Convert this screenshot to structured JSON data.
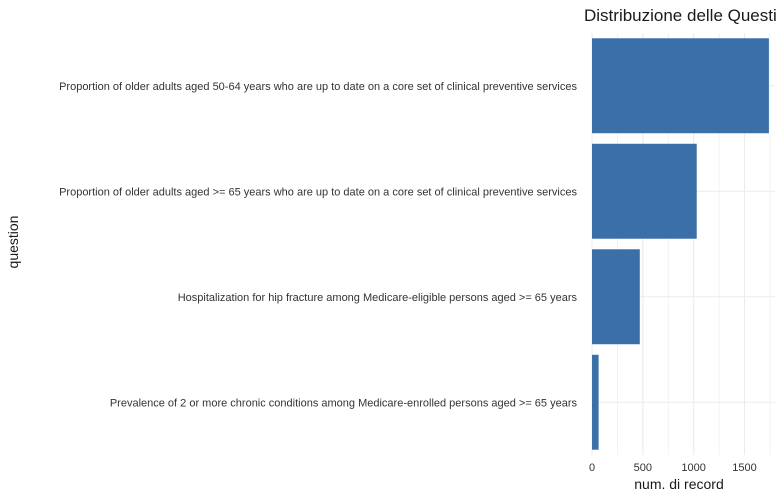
{
  "chart_data": {
    "type": "bar",
    "orientation": "horizontal",
    "title": "Distribuzione delle Questi",
    "xlabel": "num. di record",
    "ylabel": "question",
    "categories": [
      "Proportion of older adults aged 50-64 years who are up to date on a core set of clinical preventive services",
      "Proportion of older adults aged >= 65 years who are up to date on a core set of clinical preventive services",
      "Hospitalization for hip fracture among Medicare-eligible persons aged >= 65 years",
      "Prevalence of 2 or more chronic conditions among Medicare-enrolled persons aged >= 65 years"
    ],
    "values": [
      1740,
      1030,
      470,
      65
    ],
    "xticks": [
      0,
      500,
      1000,
      1500
    ],
    "xlim": [
      0,
      1800
    ],
    "grid": true,
    "bar_color": "#3a6fa8",
    "grid_color": "#ebebeb"
  }
}
